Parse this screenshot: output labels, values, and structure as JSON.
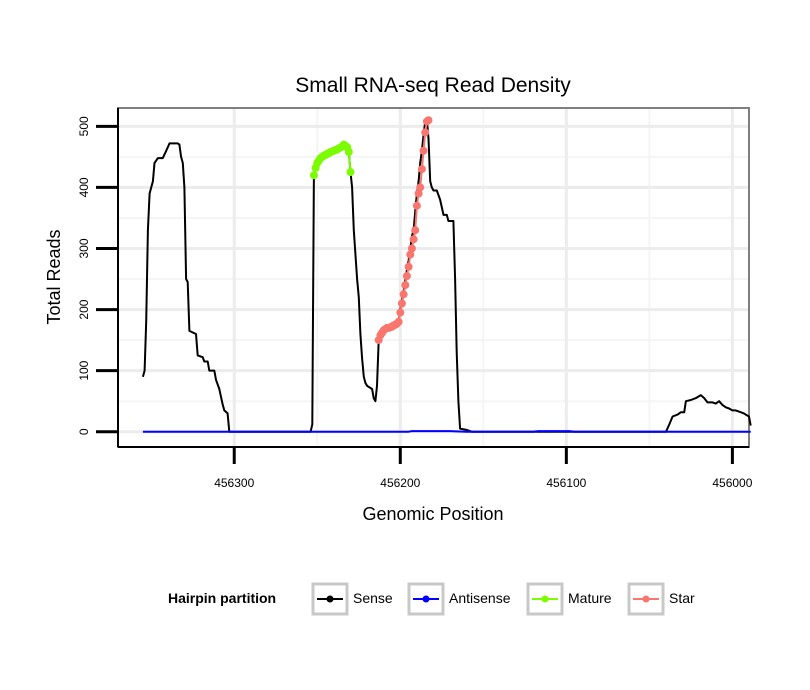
{
  "chart_data": {
    "type": "line",
    "title": "Small RNA-seq Read Density",
    "xlabel": "Genomic Position",
    "ylabel": "Total Reads",
    "x_reversed": true,
    "xlim": [
      456370,
      455990
    ],
    "ylim": [
      -25,
      530
    ],
    "xticks": [
      456300,
      456200,
      456100,
      456000
    ],
    "xtick_labels": [
      "456300",
      "456200",
      "456100",
      "456000"
    ],
    "yticks": [
      0,
      100,
      200,
      300,
      400,
      500
    ],
    "ytick_labels": [
      "0",
      "100",
      "200",
      "300",
      "400",
      "500"
    ],
    "grid": true,
    "legend": {
      "title": "Hairpin partition",
      "position": "bottom",
      "entries": [
        {
          "name": "Sense",
          "color": "#000000"
        },
        {
          "name": "Antisense",
          "color": "#0000FF"
        },
        {
          "name": "Mature",
          "color": "#7CFC00"
        },
        {
          "name": "Star",
          "color": "#F8766D"
        }
      ]
    },
    "series": [
      {
        "name": "Sense",
        "color": "#000000",
        "style": "line",
        "points": [
          [
            456355,
            90
          ],
          [
            456354,
            100
          ],
          [
            456353,
            180
          ],
          [
            456352,
            330
          ],
          [
            456351,
            390
          ],
          [
            456349,
            410
          ],
          [
            456348,
            440
          ],
          [
            456346,
            448
          ],
          [
            456343,
            448
          ],
          [
            456341,
            460
          ],
          [
            456339,
            472
          ],
          [
            456334,
            472
          ],
          [
            456333,
            470
          ],
          [
            456332,
            450
          ],
          [
            456331,
            440
          ],
          [
            456330,
            400
          ],
          [
            456329,
            250
          ],
          [
            456328,
            245
          ],
          [
            456327,
            165
          ],
          [
            456323,
            160
          ],
          [
            456322,
            125
          ],
          [
            456319,
            122
          ],
          [
            456318,
            115
          ],
          [
            456316,
            115
          ],
          [
            456315,
            100
          ],
          [
            456312,
            100
          ],
          [
            456311,
            85
          ],
          [
            456309,
            70
          ],
          [
            456307,
            45
          ],
          [
            456306,
            35
          ],
          [
            456304,
            30
          ],
          [
            456303,
            0
          ],
          [
            456254,
            0
          ],
          [
            456253,
            12
          ],
          [
            456252,
            420
          ],
          [
            456250,
            440
          ],
          [
            456248,
            448
          ],
          [
            456246,
            452
          ],
          [
            456244,
            455
          ],
          [
            456242,
            458
          ],
          [
            456240,
            460
          ],
          [
            456238,
            462
          ],
          [
            456236,
            465
          ],
          [
            456234,
            470
          ],
          [
            456232,
            466
          ],
          [
            456231,
            458
          ],
          [
            456230,
            425
          ],
          [
            456229,
            400
          ],
          [
            456228,
            330
          ],
          [
            456226,
            250
          ],
          [
            456225,
            220
          ],
          [
            456224,
            160
          ],
          [
            456223,
            120
          ],
          [
            456222,
            90
          ],
          [
            456221,
            80
          ],
          [
            456220,
            75
          ],
          [
            456217,
            70
          ],
          [
            456216,
            55
          ],
          [
            456215,
            50
          ],
          [
            456214,
            75
          ],
          [
            456213,
            150
          ],
          [
            456211,
            160
          ],
          [
            456209,
            168
          ],
          [
            456207,
            170
          ],
          [
            456205,
            172
          ],
          [
            456203,
            175
          ],
          [
            456201,
            180
          ],
          [
            456200,
            200
          ],
          [
            456199,
            215
          ],
          [
            456198,
            230
          ],
          [
            456197,
            248
          ],
          [
            456196,
            265
          ],
          [
            456195,
            280
          ],
          [
            456194,
            300
          ],
          [
            456193,
            320
          ],
          [
            456192,
            330
          ],
          [
            456191,
            360
          ],
          [
            456190,
            390
          ],
          [
            456189,
            410
          ],
          [
            456188,
            440
          ],
          [
            456187,
            460
          ],
          [
            456186,
            485
          ],
          [
            456185,
            508
          ],
          [
            456184,
            510
          ],
          [
            456183,
            480
          ],
          [
            456182,
            410
          ],
          [
            456181,
            400
          ],
          [
            456180,
            395
          ],
          [
            456178,
            395
          ],
          [
            456176,
            380
          ],
          [
            456174,
            355
          ],
          [
            456172,
            355
          ],
          [
            456171,
            345
          ],
          [
            456168,
            345
          ],
          [
            456167,
            250
          ],
          [
            456166,
            130
          ],
          [
            456165,
            50
          ],
          [
            456164,
            5
          ],
          [
            456160,
            3
          ],
          [
            456157,
            0
          ],
          [
            456040,
            0
          ],
          [
            456038,
            12
          ],
          [
            456036,
            25
          ],
          [
            456033,
            28
          ],
          [
            456031,
            32
          ],
          [
            456029,
            32
          ],
          [
            456028,
            50
          ],
          [
            456025,
            52
          ],
          [
            456022,
            55
          ],
          [
            456019,
            60
          ],
          [
            456017,
            55
          ],
          [
            456015,
            48
          ],
          [
            456012,
            48
          ],
          [
            456010,
            46
          ],
          [
            456008,
            50
          ],
          [
            456006,
            44
          ],
          [
            456004,
            40
          ],
          [
            456002,
            38
          ],
          [
            456000,
            35
          ],
          [
            455998,
            35
          ],
          [
            455995,
            32
          ],
          [
            455993,
            30
          ],
          [
            455992,
            28
          ],
          [
            455990,
            25
          ],
          [
            455989,
            10
          ]
        ]
      },
      {
        "name": "Antisense",
        "color": "#0000FF",
        "style": "line",
        "points": [
          [
            456355,
            0
          ],
          [
            456200,
            0
          ],
          [
            456195,
            0
          ],
          [
            456193,
            1
          ],
          [
            456180,
            1
          ],
          [
            456170,
            1
          ],
          [
            456160,
            0
          ],
          [
            456120,
            0
          ],
          [
            456117,
            1
          ],
          [
            456098,
            1
          ],
          [
            456095,
            0
          ],
          [
            455989,
            0
          ]
        ]
      },
      {
        "name": "Mature",
        "color": "#7CFC00",
        "style": "line+points",
        "points": [
          [
            456252,
            420
          ],
          [
            456251,
            432
          ],
          [
            456250,
            440
          ],
          [
            456249,
            444
          ],
          [
            456248,
            448
          ],
          [
            456247,
            450
          ],
          [
            456246,
            452
          ],
          [
            456245,
            453
          ],
          [
            456244,
            455
          ],
          [
            456243,
            456
          ],
          [
            456242,
            458
          ],
          [
            456241,
            459
          ],
          [
            456240,
            460
          ],
          [
            456239,
            461
          ],
          [
            456238,
            462
          ],
          [
            456237,
            464
          ],
          [
            456236,
            465
          ],
          [
            456235,
            467
          ],
          [
            456234,
            470
          ],
          [
            456233,
            468
          ],
          [
            456232,
            466
          ],
          [
            456231,
            458
          ],
          [
            456230,
            425
          ]
        ]
      },
      {
        "name": "Star",
        "color": "#F8766D",
        "style": "line+points",
        "points": [
          [
            456213,
            150
          ],
          [
            456212,
            158
          ],
          [
            456211,
            162
          ],
          [
            456210,
            166
          ],
          [
            456209,
            168
          ],
          [
            456208,
            170
          ],
          [
            456207,
            170
          ],
          [
            456206,
            171
          ],
          [
            456205,
            172
          ],
          [
            456204,
            174
          ],
          [
            456203,
            175
          ],
          [
            456202,
            177
          ],
          [
            456201,
            180
          ],
          [
            456200,
            195
          ],
          [
            456199,
            210
          ],
          [
            456198,
            225
          ],
          [
            456197,
            240
          ],
          [
            456196,
            255
          ],
          [
            456195,
            270
          ],
          [
            456194,
            290
          ],
          [
            456193,
            300
          ],
          [
            456192,
            315
          ],
          [
            456191,
            330
          ],
          [
            456190,
            370
          ],
          [
            456189,
            390
          ],
          [
            456188,
            400
          ],
          [
            456187,
            430
          ],
          [
            456186,
            460
          ],
          [
            456185,
            490
          ],
          [
            456184,
            508
          ],
          [
            456183,
            510
          ]
        ]
      }
    ]
  }
}
